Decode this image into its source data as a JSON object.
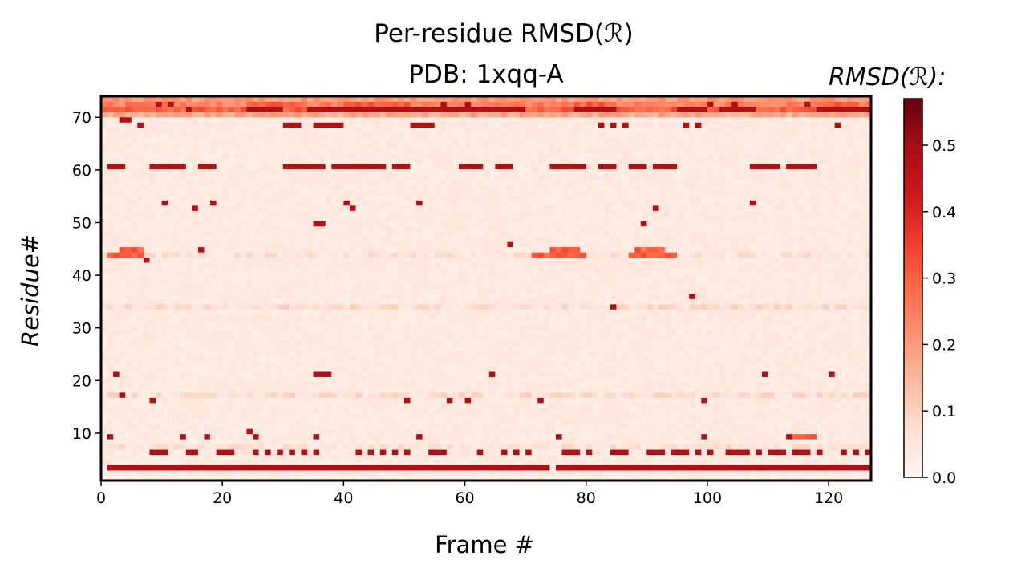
{
  "chart_data": {
    "type": "heatmap",
    "title_line1": "Per-residue RMSD(ℛ)",
    "title_line2": "PDB: 1xqq-A",
    "xlabel": "Frame #",
    "ylabel": "Residue#",
    "colorbar_label": "RMSD(ℛ):",
    "colormap": "Reds",
    "xlim": [
      0,
      127
    ],
    "ylim": [
      1,
      74
    ],
    "clim": [
      0.0,
      0.57
    ],
    "x_ticks": [
      0,
      20,
      40,
      60,
      80,
      100,
      120
    ],
    "y_ticks": [
      10,
      20,
      30,
      40,
      50,
      60,
      70
    ],
    "colorbar_ticks": [
      0.0,
      0.1,
      0.2,
      0.3,
      0.4,
      0.5
    ],
    "colorbar_tick_labels": [
      "0.0",
      "0.1",
      "0.2",
      "0.3",
      "0.4",
      "0.5"
    ],
    "background_value": 0.02,
    "high_value": 0.48,
    "medium_value": 0.3,
    "row_background": [
      {
        "residue": 7,
        "value": 0.06
      },
      {
        "residue": 17,
        "value": 0.07
      },
      {
        "residue": 34,
        "value": 0.07
      },
      {
        "residue": 44,
        "value": 0.06
      },
      {
        "residue": 71,
        "value": 0.18
      },
      {
        "residue": 72,
        "value": 0.3
      },
      {
        "residue": 73,
        "value": 0.24
      },
      {
        "residue": 74,
        "value": 0.2
      }
    ],
    "high_segments": [
      {
        "residue": 3,
        "frames": [
          [
            1,
            73
          ],
          [
            75,
            126
          ]
        ]
      },
      {
        "residue": 6,
        "frames": [
          [
            8,
            10
          ],
          [
            14,
            15
          ],
          [
            19,
            21
          ],
          [
            54,
            56
          ],
          [
            76,
            78
          ],
          [
            84,
            86
          ],
          [
            90,
            92
          ],
          [
            95,
            96
          ],
          [
            103,
            106
          ],
          [
            110,
            112
          ],
          [
            114,
            116
          ]
        ]
      },
      {
        "residue": 61,
        "frames": [
          [
            1,
            3
          ],
          [
            8,
            13
          ],
          [
            16,
            18
          ],
          [
            30,
            33
          ],
          [
            34,
            36
          ],
          [
            38,
            40
          ],
          [
            41,
            46
          ],
          [
            48,
            50
          ],
          [
            59,
            62
          ],
          [
            65,
            67
          ],
          [
            74,
            79
          ],
          [
            82,
            84
          ],
          [
            87,
            89
          ],
          [
            91,
            94
          ],
          [
            107,
            111
          ],
          [
            113,
            117
          ]
        ]
      },
      {
        "residue": 72,
        "frames": [
          [
            24,
            29
          ],
          [
            34,
            41
          ],
          [
            42,
            50
          ],
          [
            51,
            58
          ],
          [
            59,
            69
          ],
          [
            78,
            84
          ],
          [
            95,
            99
          ],
          [
            102,
            107
          ],
          [
            118,
            126
          ]
        ]
      },
      {
        "residue": 69,
        "frames": [
          [
            30,
            32
          ],
          [
            35,
            36
          ],
          [
            37,
            39
          ],
          [
            51,
            54
          ]
        ]
      },
      {
        "residue": 21,
        "frames": [
          [
            35,
            37
          ]
        ]
      },
      {
        "residue": 50,
        "frames": [
          [
            35,
            36
          ]
        ]
      }
    ],
    "medium_segments": [
      {
        "residue": 44,
        "frames": [
          [
            1,
            6
          ],
          [
            71,
            79
          ],
          [
            87,
            94
          ]
        ]
      },
      {
        "residue": 45,
        "frames": [
          [
            3,
            6
          ],
          [
            74,
            78
          ],
          [
            88,
            92
          ]
        ]
      },
      {
        "residue": 9,
        "frames": [
          [
            113,
            117
          ]
        ]
      },
      {
        "residue": 73,
        "frames": [
          [
            4,
            10
          ],
          [
            24,
            32
          ],
          [
            40,
            50
          ],
          [
            78,
            82
          ],
          [
            118,
            124
          ]
        ]
      }
    ],
    "high_points": [
      [
        1,
        9
      ],
      [
        2,
        21
      ],
      [
        3,
        17
      ],
      [
        3,
        70
      ],
      [
        4,
        70
      ],
      [
        6,
        69
      ],
      [
        7,
        43
      ],
      [
        8,
        16
      ],
      [
        10,
        54
      ],
      [
        13,
        9
      ],
      [
        15,
        53
      ],
      [
        17,
        9
      ],
      [
        18,
        54
      ],
      [
        25,
        9
      ],
      [
        25,
        6
      ],
      [
        27,
        6
      ],
      [
        29,
        6
      ],
      [
        31,
        6
      ],
      [
        33,
        6
      ],
      [
        35,
        9
      ],
      [
        35,
        6
      ],
      [
        40,
        54
      ],
      [
        41,
        53
      ],
      [
        42,
        6
      ],
      [
        44,
        6
      ],
      [
        46,
        6
      ],
      [
        48,
        6
      ],
      [
        50,
        16
      ],
      [
        50,
        6
      ],
      [
        52,
        54
      ],
      [
        52,
        9
      ],
      [
        57,
        16
      ],
      [
        60,
        16
      ],
      [
        62,
        6
      ],
      [
        64,
        21
      ],
      [
        66,
        6
      ],
      [
        67,
        46
      ],
      [
        68,
        6
      ],
      [
        70,
        6
      ],
      [
        72,
        16
      ],
      [
        75,
        9
      ],
      [
        80,
        6
      ],
      [
        82,
        69
      ],
      [
        84,
        69
      ],
      [
        86,
        69
      ],
      [
        89,
        50
      ],
      [
        91,
        53
      ],
      [
        94,
        6
      ],
      [
        96,
        69
      ],
      [
        97,
        36
      ],
      [
        98,
        6
      ],
      [
        98,
        69
      ],
      [
        99,
        16
      ],
      [
        99,
        9
      ],
      [
        100,
        6
      ],
      [
        107,
        54
      ],
      [
        108,
        6
      ],
      [
        109,
        21
      ],
      [
        113,
        9
      ],
      [
        118,
        6
      ],
      [
        120,
        21
      ],
      [
        121,
        69
      ],
      [
        122,
        6
      ],
      [
        124,
        6
      ],
      [
        126,
        6
      ],
      [
        24,
        10
      ],
      [
        84,
        34
      ],
      [
        16,
        45
      ],
      [
        14,
        72
      ],
      [
        9,
        73
      ],
      [
        11,
        73
      ],
      [
        56,
        73
      ],
      [
        60,
        73
      ],
      [
        100,
        73
      ],
      [
        104,
        73
      ],
      [
        116,
        73
      ]
    ]
  }
}
